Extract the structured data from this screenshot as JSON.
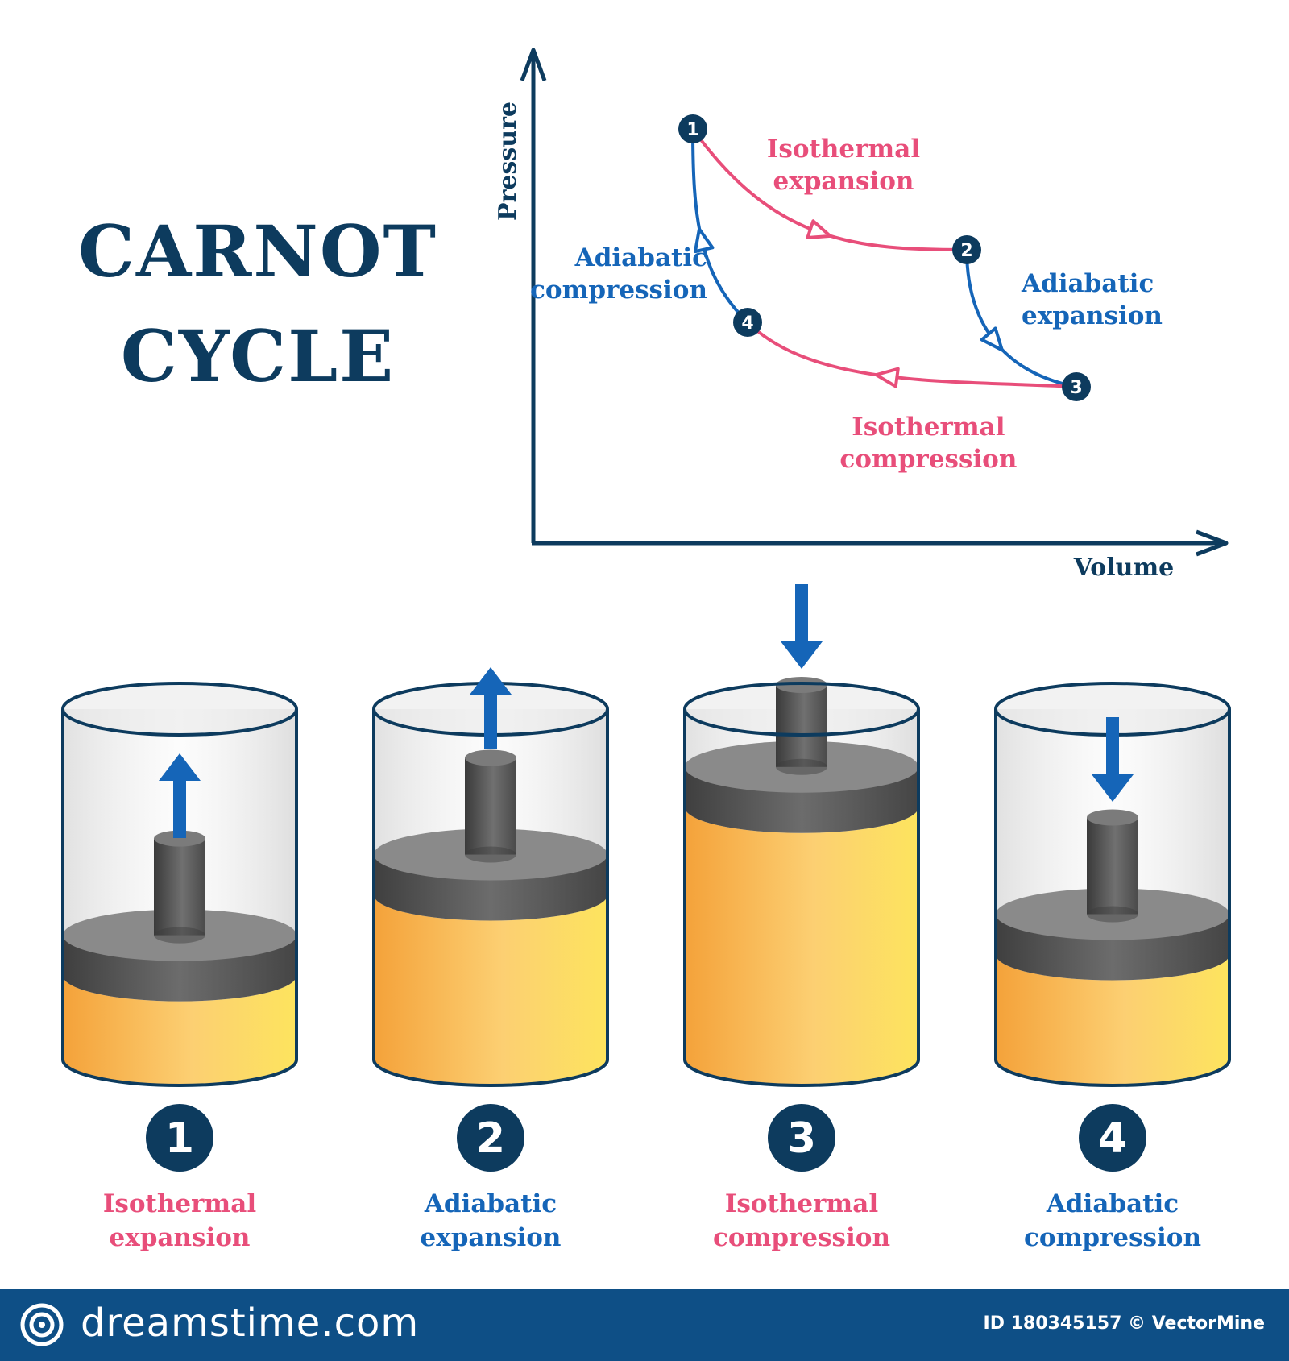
{
  "title": {
    "line1": "CARNOT",
    "line2": "CYCLE"
  },
  "colors": {
    "navy": "#0d3b5e",
    "pink": "#e84e7a",
    "blue": "#1565b8",
    "piston": "#5a5a5a",
    "gas_light": "#fde45e",
    "gas_dark": "#f4a23a",
    "footer": "#0e4f86"
  },
  "chart_data": {
    "type": "line",
    "xlabel": "Volume",
    "ylabel": "Pressure",
    "points": [
      {
        "id": "1",
        "volume": 1.0,
        "pressure": 9.0
      },
      {
        "id": "2",
        "volume": 6.0,
        "pressure": 6.0
      },
      {
        "id": "3",
        "volume": 8.0,
        "pressure": 2.6
      },
      {
        "id": "4",
        "volume": 2.0,
        "pressure": 4.2
      }
    ],
    "processes": [
      {
        "from": "1",
        "to": "2",
        "label_line1": "Isothermal",
        "label_line2": "expansion",
        "kind": "isothermal"
      },
      {
        "from": "2",
        "to": "3",
        "label_line1": "Adiabatic",
        "label_line2": "expansion",
        "kind": "adiabatic"
      },
      {
        "from": "3",
        "to": "4",
        "label_line1": "Isothermal",
        "label_line2": "compression",
        "kind": "isothermal"
      },
      {
        "from": "4",
        "to": "1",
        "label_line1": "Adiabatic",
        "label_line2": "compression",
        "kind": "adiabatic"
      }
    ]
  },
  "stages": [
    {
      "number": "1",
      "label_line1": "Isothermal",
      "label_line2": "expansion",
      "kind": "isothermal",
      "gas_fraction": 0.24,
      "arrow": "up"
    },
    {
      "number": "2",
      "label_line1": "Adiabatic",
      "label_line2": "expansion",
      "kind": "adiabatic",
      "gas_fraction": 0.47,
      "arrow": "up"
    },
    {
      "number": "3",
      "label_line1": "Isothermal",
      "label_line2": "compression",
      "kind": "isothermal",
      "gas_fraction": 0.72,
      "arrow": "down"
    },
    {
      "number": "4",
      "label_line1": "Adiabatic",
      "label_line2": "compression",
      "kind": "adiabatic",
      "gas_fraction": 0.3,
      "arrow": "down"
    }
  ],
  "footer": {
    "brand": "dreamstime.com",
    "credit": "ID 180345157 © VectorMine"
  }
}
